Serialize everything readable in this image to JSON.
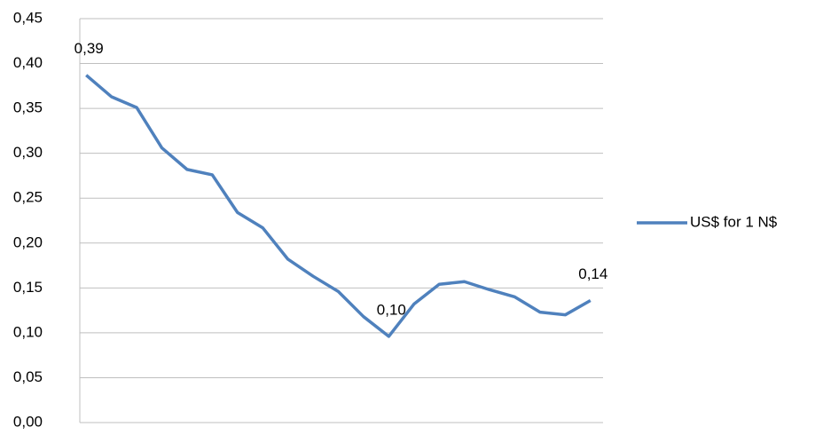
{
  "chart_data": {
    "type": "line",
    "categories": [
      null,
      null,
      null,
      null,
      null,
      null,
      null,
      null,
      null,
      null,
      null,
      null,
      null,
      null,
      null,
      null,
      null,
      null,
      null,
      null,
      null
    ],
    "series": [
      {
        "name": "US$ for 1 N$",
        "color": "#4f81bd",
        "values": [
          0.387,
          0.363,
          0.351,
          0.306,
          0.282,
          0.276,
          0.234,
          0.217,
          0.182,
          0.163,
          0.146,
          0.118,
          0.096,
          0.132,
          0.154,
          0.157,
          0.148,
          0.14,
          0.123,
          0.12,
          0.136
        ],
        "value_labels": [
          "0,39",
          null,
          null,
          null,
          null,
          null,
          null,
          null,
          null,
          null,
          null,
          null,
          "0,10",
          null,
          null,
          null,
          null,
          null,
          null,
          null,
          "0,14"
        ]
      }
    ],
    "ylim": [
      0,
      0.45
    ],
    "yticks": [
      {
        "value": 0,
        "label": "0,00"
      },
      {
        "value": 0.05,
        "label": "0,05"
      },
      {
        "value": 0.1,
        "label": "0,10"
      },
      {
        "value": 0.15,
        "label": "0,15"
      },
      {
        "value": 0.2,
        "label": "0,20"
      },
      {
        "value": 0.25,
        "label": "0,25"
      },
      {
        "value": 0.3,
        "label": "0,30"
      },
      {
        "value": 0.35,
        "label": "0,35"
      },
      {
        "value": 0.4,
        "label": "0,40"
      },
      {
        "value": 0.45,
        "label": "0,45"
      }
    ],
    "grid": true,
    "legend": "right"
  }
}
